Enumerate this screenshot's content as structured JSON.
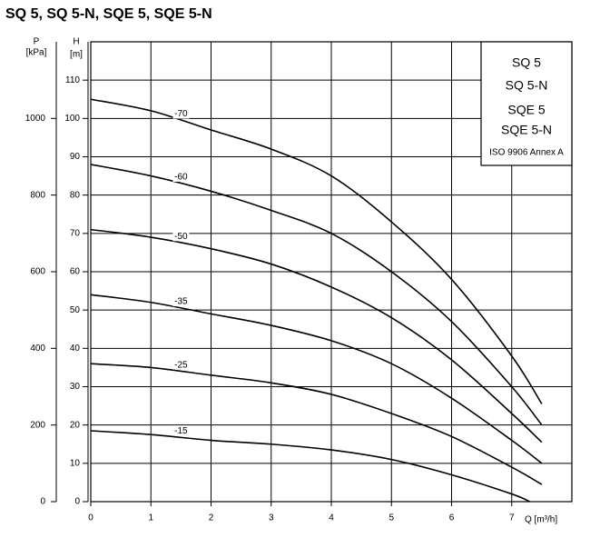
{
  "chart_data": {
    "type": "line",
    "title": "SQ 5, SQ 5-N, SQE 5, SQE 5-N",
    "y_label": "H",
    "y_unit": "[m]",
    "p_label": "P",
    "p_unit": "[kPa]",
    "x_label": "Q [m³/h]",
    "xlim": [
      0,
      8
    ],
    "xticks": [
      0,
      1,
      2,
      3,
      4,
      5,
      6,
      7
    ],
    "ylim": [
      0,
      120
    ],
    "yticks": [
      0,
      10,
      20,
      30,
      40,
      50,
      60,
      70,
      80,
      90,
      100,
      110
    ],
    "plim": [
      0,
      1200
    ],
    "pticks": [
      0,
      200,
      400,
      600,
      800,
      1000
    ],
    "grid": true,
    "legend_box": [
      "SQ 5",
      "SQ 5-N",
      "SQE 5",
      "SQE 5-N",
      "ISO 9906 Annex A"
    ],
    "series": [
      {
        "name": "-70",
        "color": "#000000",
        "x": [
          0,
          1,
          2,
          3,
          4,
          5,
          6,
          7,
          7.5
        ],
        "values": [
          105,
          102,
          97,
          92,
          85,
          73,
          58,
          38,
          25.5
        ]
      },
      {
        "name": "-60",
        "color": "#000000",
        "x": [
          0,
          1,
          2,
          3,
          4,
          5,
          6,
          7,
          7.5
        ],
        "values": [
          88,
          85,
          81,
          76,
          70,
          60,
          47,
          30,
          20
        ]
      },
      {
        "name": "-50",
        "color": "#000000",
        "x": [
          0,
          1,
          2,
          3,
          4,
          5,
          6,
          7,
          7.5
        ],
        "values": [
          71,
          69,
          66,
          62,
          56,
          48,
          37,
          23,
          15.5
        ]
      },
      {
        "name": "-35",
        "color": "#000000",
        "x": [
          0,
          1,
          2,
          3,
          4,
          5,
          6,
          7,
          7.5
        ],
        "values": [
          54,
          52,
          49,
          46,
          42,
          36,
          27,
          16,
          10
        ]
      },
      {
        "name": "-25",
        "color": "#000000",
        "x": [
          0,
          1,
          2,
          3,
          4,
          5,
          6,
          7,
          7.5
        ],
        "values": [
          36,
          35,
          33,
          31,
          28,
          23,
          17,
          9,
          4.5
        ]
      },
      {
        "name": "-15",
        "color": "#000000",
        "x": [
          0,
          1,
          2,
          3,
          4,
          5,
          6,
          7,
          7.3
        ],
        "values": [
          18.5,
          17.5,
          16,
          15,
          13.5,
          11,
          7,
          2,
          0
        ]
      }
    ]
  }
}
